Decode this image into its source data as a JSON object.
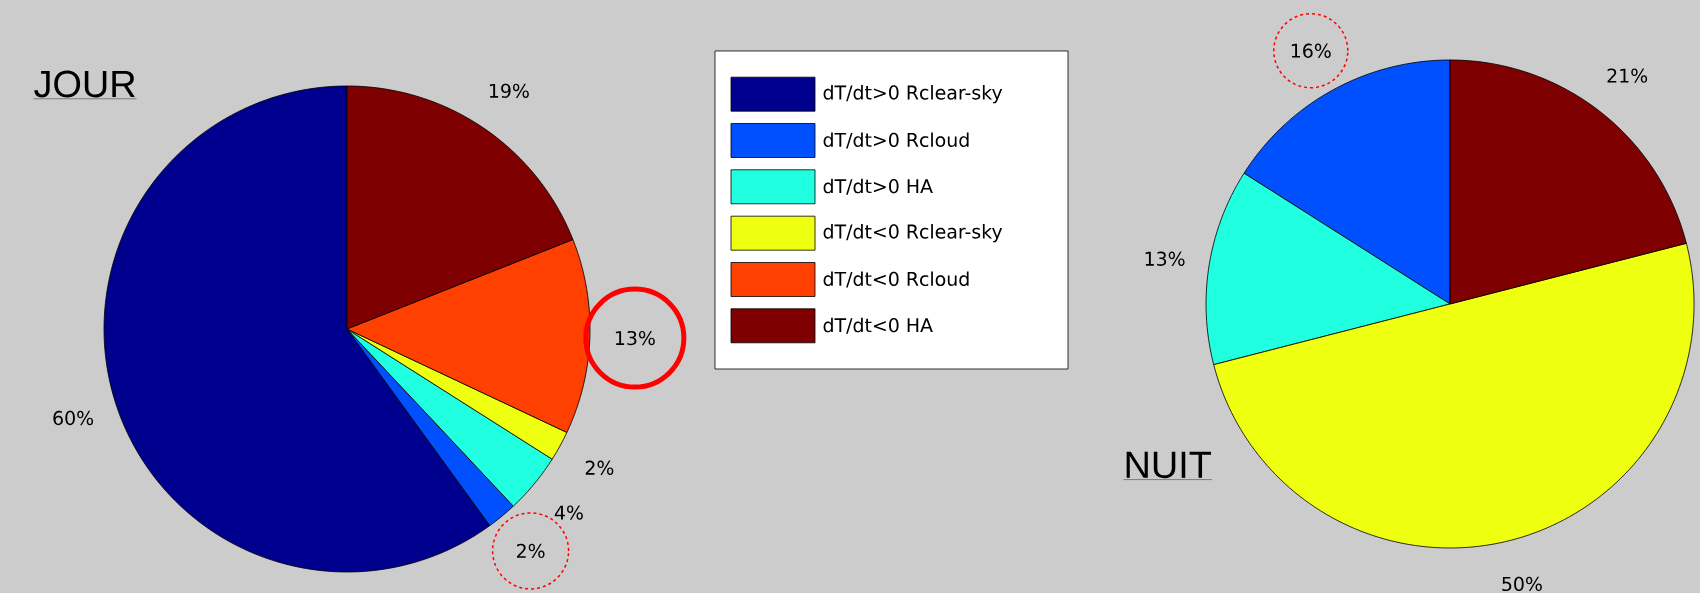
{
  "chart_data": [
    {
      "type": "pie",
      "title": "JOUR",
      "categories": [
        "dT/dt>0 Rclear-sky",
        "dT/dt>0 Rcloud",
        "dT/dt>0 HA",
        "dT/dt<0 Rclear-sky",
        "dT/dt<0 Rcloud",
        "dT/dt<0 HA"
      ],
      "values": [
        60,
        2,
        4,
        2,
        13,
        19
      ],
      "value_labels": [
        "60%",
        "2%",
        "4%",
        "2%",
        "13%",
        "19%"
      ],
      "colors": [
        "#00008f",
        "#0050ff",
        "#20ffdf",
        "#efff10",
        "#ff4000",
        "#7f0000"
      ],
      "legend": "right"
    },
    {
      "type": "pie",
      "title": "NUIT",
      "categories": [
        null,
        null,
        null,
        null,
        null,
        null
      ],
      "values": [
        0,
        16,
        13,
        50,
        0,
        21
      ],
      "value_labels": [
        null,
        "16%",
        "13%",
        "50%",
        null,
        "21%"
      ],
      "colors": [
        "#00008f",
        "#0050ff",
        "#20ffdf",
        "#efff10",
        "#ff4000",
        "#7f0000"
      ]
    }
  ]
}
